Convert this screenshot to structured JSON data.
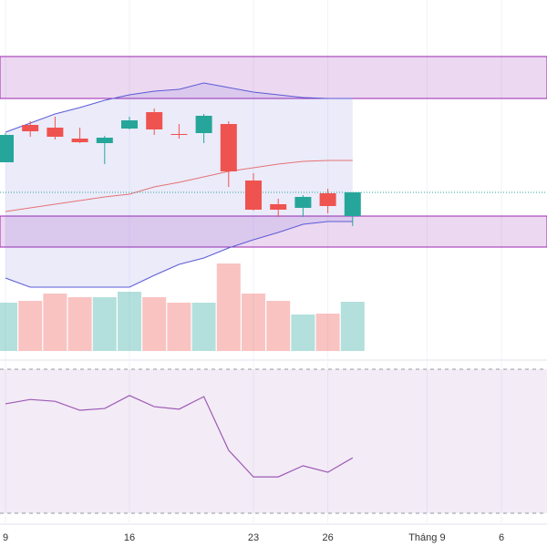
{
  "chart_data": {
    "type": "candlestick",
    "categories": [
      "9",
      null,
      null,
      null,
      null,
      "16",
      null,
      null,
      null,
      null,
      "23",
      null,
      null,
      "26",
      null,
      null,
      null,
      "Tháng 9",
      null,
      null,
      "6",
      null
    ],
    "open": [
      222,
      263,
      260,
      248,
      243,
      259,
      277,
      253,
      254,
      264,
      202,
      176,
      172,
      188,
      163,
      null,
      null,
      null,
      null,
      null,
      null,
      null
    ],
    "high": [
      254,
      267,
      272,
      260,
      251,
      272,
      281,
      264,
      275,
      267,
      210,
      182,
      186,
      193,
      189,
      null,
      null,
      null,
      null,
      null,
      null,
      null
    ],
    "low": [
      222,
      250,
      247,
      243,
      220,
      258,
      252,
      248,
      243,
      195,
      169,
      162,
      162,
      166,
      152,
      null,
      null,
      null,
      null,
      null,
      null,
      null
    ],
    "close": [
      252,
      256,
      250,
      244,
      249,
      268,
      258,
      252,
      273,
      212,
      170,
      170,
      184,
      174,
      189,
      null,
      null,
      null,
      null,
      null,
      null,
      null
    ],
    "up_color": "#26a69a",
    "down_color": "#ef5350",
    "ylim": [
      110,
      400
    ],
    "bollinger": {
      "upper": [
        255,
        265,
        275,
        282,
        290,
        296,
        300,
        302,
        309,
        304,
        299,
        296,
        293,
        292,
        292,
        null,
        null,
        null,
        null,
        null,
        null,
        null
      ],
      "middle": [
        168,
        172,
        176,
        180,
        184,
        187,
        195,
        200,
        206,
        212,
        216,
        220,
        223,
        224,
        224,
        null,
        null,
        null,
        null,
        null,
        null,
        null
      ],
      "lower": [
        95,
        85,
        85,
        85,
        85,
        85,
        98,
        110,
        117,
        128,
        137,
        145,
        154,
        157,
        157,
        null,
        null,
        null,
        null,
        null,
        null,
        null
      ],
      "band_color": "#5b5bd6",
      "middle_color": "#e57373"
    },
    "zones": [
      {
        "from": 292,
        "to": 338
      },
      {
        "from": 129,
        "to": 163
      }
    ],
    "zone_color": "#9c27b0",
    "volume": [
      53,
      55,
      63,
      59,
      59,
      65,
      59,
      53,
      53,
      96,
      63,
      55,
      40,
      41,
      54,
      null,
      null,
      null,
      null,
      null,
      null,
      null
    ],
    "volume_ylim": [
      0,
      100
    ],
    "rsi": [
      60.4,
      61.6,
      61.1,
      58.6,
      59.1,
      62.7,
      59.6,
      58.9,
      62.4,
      47.5,
      40.1,
      40.1,
      43.2,
      41.4,
      45.4,
      null,
      null,
      null,
      null,
      null,
      null,
      null
    ],
    "rsi_ylim": [
      30,
      70
    ],
    "rsi_levels": [
      70,
      30
    ],
    "rsi_color": "#9c5bb5"
  }
}
